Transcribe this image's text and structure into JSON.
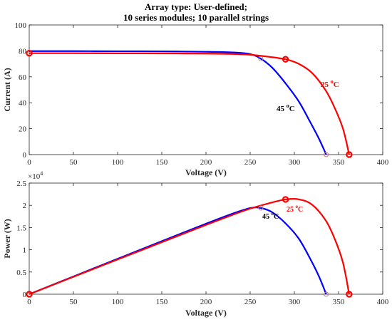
{
  "figure": {
    "title_lines": [
      "Array type: User-defined;",
      "10 series modules; 10 parallel strings"
    ]
  },
  "colors": {
    "temp25": "#ff0000",
    "temp45": "#0000ff"
  },
  "chart_data": [
    {
      "type": "line",
      "xlabel": "Voltage (V)",
      "ylabel": "Current (A)",
      "xlim": [
        0,
        400
      ],
      "ylim": [
        0,
        100
      ],
      "xticks": [
        0,
        50,
        100,
        150,
        200,
        250,
        300,
        350,
        400
      ],
      "yticks": [
        0,
        20,
        40,
        60,
        80,
        100
      ],
      "grid": false,
      "series": [
        {
          "name": "25 °C",
          "label_main": "25 ",
          "label_sup": "o",
          "label_unit": "C",
          "color": "#ff0000",
          "x": [
            0,
            50,
            100,
            150,
            200,
            230,
            250,
            270,
            290,
            305,
            320,
            335,
            345,
            355,
            362
          ],
          "y": [
            78.2,
            78.2,
            78.1,
            78.0,
            77.9,
            77.6,
            77.0,
            75.5,
            73.5,
            70.0,
            63.0,
            50.0,
            37.0,
            20.0,
            0
          ],
          "markers": [
            {
              "x": 0,
              "y": 78.2
            },
            {
              "x": 290,
              "y": 73.5
            },
            {
              "x": 362,
              "y": 0
            }
          ]
        },
        {
          "name": "45 °C",
          "label_main": "45 ",
          "label_sup": "o",
          "label_unit": "C",
          "color": "#0000ff",
          "x": [
            0,
            50,
            100,
            150,
            200,
            230,
            250,
            262,
            275,
            290,
            305,
            318,
            328,
            336
          ],
          "y": [
            79.8,
            79.8,
            79.7,
            79.6,
            79.3,
            78.8,
            77.5,
            74.0,
            67.0,
            55.0,
            41.0,
            25.0,
            12.0,
            0
          ],
          "markers": [
            {
              "x": 262,
              "y": 74.0
            },
            {
              "x": 336,
              "y": 0
            }
          ]
        }
      ]
    },
    {
      "type": "line",
      "xlabel": "Voltage (V)",
      "ylabel": "Power (W)",
      "y_exponent_base": "×10",
      "y_exponent_power": "4",
      "xlim": [
        0,
        400
      ],
      "ylim": [
        0,
        25000
      ],
      "xticks": [
        0,
        50,
        100,
        150,
        200,
        250,
        300,
        350,
        400
      ],
      "ytick_values": [
        0,
        5000,
        10000,
        15000,
        20000,
        25000
      ],
      "ytick_labels": [
        "0",
        "0.5",
        "1",
        "1.5",
        "2",
        "2.5"
      ],
      "grid": false,
      "series": [
        {
          "name": "25 °C",
          "label_main": "25 ",
          "label_sup": "o",
          "label_unit": "C",
          "color": "#ff0000",
          "x": [
            0,
            50,
            100,
            150,
            200,
            230,
            250,
            270,
            290,
            305,
            320,
            335,
            345,
            355,
            362
          ],
          "y": [
            0,
            3910,
            7810,
            11700,
            15580,
            17850,
            19250,
            20390,
            21320,
            21350,
            20160,
            16750,
            12770,
            7100,
            0
          ],
          "markers": [
            {
              "x": 0,
              "y": 0
            },
            {
              "x": 290,
              "y": 21320
            },
            {
              "x": 362,
              "y": 0
            }
          ]
        },
        {
          "name": "45 °C",
          "label_main": "45 ",
          "label_sup": "o",
          "label_unit": "C",
          "color": "#0000ff",
          "x": [
            0,
            50,
            100,
            150,
            200,
            230,
            250,
            262,
            275,
            290,
            305,
            318,
            328,
            336
          ],
          "y": [
            0,
            3990,
            7970,
            11940,
            15860,
            18120,
            19380,
            19390,
            18430,
            15950,
            12510,
            7950,
            3940,
            0
          ],
          "markers": [
            {
              "x": 262,
              "y": 19390
            },
            {
              "x": 336,
              "y": 0
            }
          ]
        }
      ]
    }
  ]
}
